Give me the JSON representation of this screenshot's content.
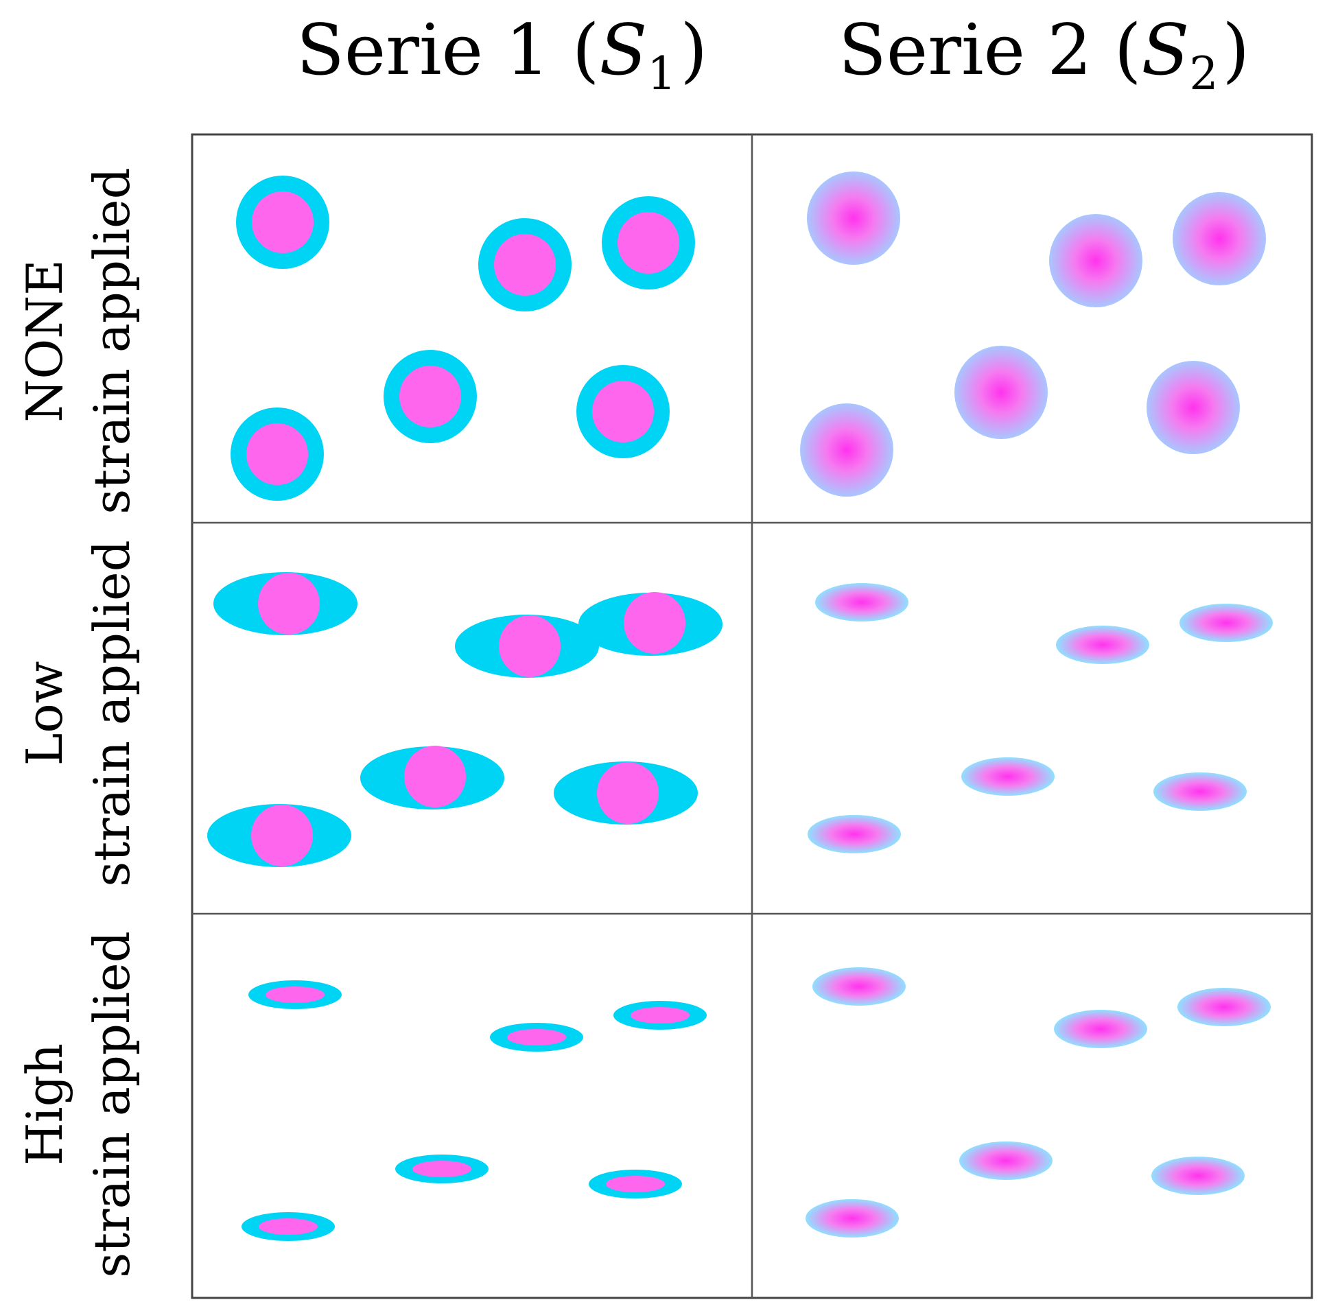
{
  "columns": [
    {
      "title_prefix": "Serie 1 (",
      "symbol": "S",
      "subscript": "1",
      "title_suffix": ")"
    },
    {
      "title_prefix": "Serie 2 (",
      "symbol": "S",
      "subscript": "2",
      "title_suffix": ")"
    }
  ],
  "rows": [
    {
      "line1": "NONE",
      "line2": "strain applied"
    },
    {
      "line1": "Low",
      "line2": "strain applied"
    },
    {
      "line1": "High",
      "line2": "strain applied"
    }
  ],
  "colors": {
    "shell": "#00d4f5",
    "core": "#ff66ee",
    "blended_edge": "#a8c8ff",
    "blended_center": "#ff44ee",
    "grid": "#555555"
  }
}
